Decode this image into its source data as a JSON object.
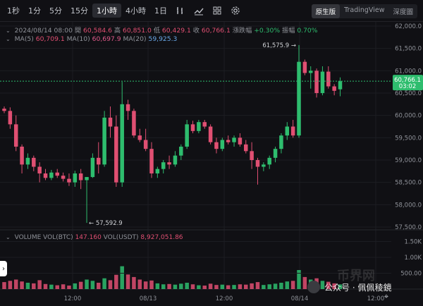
{
  "toolbar": {
    "timeframes": [
      "1秒",
      "1分",
      "5分",
      "15分",
      "1小時",
      "4小時",
      "1日"
    ],
    "active_timeframe": "1小時",
    "views": [
      "原生版",
      "TradingView",
      "深度圖"
    ],
    "active_view": "原生版"
  },
  "ohlc": {
    "date": "2024/08/14 08:00",
    "open_label": "開",
    "open": "60,584.6",
    "high_label": "高",
    "high": "60,851.0",
    "low_label": "低",
    "low": "60,429.1",
    "close_label": "收",
    "close": "60,766.1",
    "change_label": "漲跌幅",
    "change": "+0.30%",
    "amp_label": "振幅",
    "amp": "0.70%"
  },
  "ma": {
    "ma5_label": "MA(5)",
    "ma5": "60,709.1",
    "ma10_label": "MA(10)",
    "ma10": "60,697.9",
    "ma20_label": "MA(20)",
    "ma20": "59,925.3"
  },
  "volume": {
    "label": "VOLUME",
    "btc_label": "VOL(BTC)",
    "btc": "147.160",
    "usdt_label": "VOL(USDT)",
    "usdt": "8,927,051.86"
  },
  "price_axis": [
    "62,000.0",
    "61,500.0",
    "61,000.0",
    "60,500.0",
    "60,000.0",
    "59,500.0",
    "59,000.0",
    "58,500.0",
    "58,000.0",
    "57,500.0"
  ],
  "current_price": "60,766.1",
  "countdown": "03:02",
  "volume_axis": [
    "1.50K",
    "1.00K",
    "500.00"
  ],
  "time_axis": [
    "12:00",
    "08/13",
    "12:00",
    "08/14",
    "12:00"
  ],
  "annotations": {
    "high": "61,575.9",
    "low": "57,592.9"
  },
  "watermark": {
    "text": "公众号 · 佩佩稜鏡",
    "brand": "币界网"
  },
  "colors": {
    "up": "#2ebd6e",
    "down": "#e04f72",
    "background": "#101014"
  },
  "chart_data": {
    "type": "candlestick",
    "ylim": [
      57500,
      62000
    ],
    "candles": [
      [
        60150,
        60200,
        60050,
        60100,
        220
      ],
      [
        60100,
        60180,
        59700,
        59800,
        260
      ],
      [
        59800,
        60000,
        59200,
        59300,
        300
      ],
      [
        59300,
        59350,
        58700,
        58900,
        240
      ],
      [
        58900,
        59150,
        58800,
        59050,
        200
      ],
      [
        59050,
        59100,
        58750,
        58850,
        180
      ],
      [
        58850,
        58950,
        58500,
        58700,
        280
      ],
      [
        58700,
        58800,
        58550,
        58600,
        160
      ],
      [
        58600,
        58780,
        58550,
        58720,
        140
      ],
      [
        58720,
        58800,
        58600,
        58650,
        120
      ],
      [
        58650,
        58720,
        58520,
        58580,
        150
      ],
      [
        58580,
        58700,
        58420,
        58500,
        110
      ],
      [
        58500,
        58760,
        58400,
        58700,
        180
      ],
      [
        58700,
        58800,
        58350,
        58550,
        230
      ],
      [
        58550,
        58600,
        57592.9,
        58620,
        300
      ],
      [
        58620,
        59150,
        58600,
        59050,
        260
      ],
      [
        59050,
        59400,
        58700,
        58900,
        200
      ],
      [
        58900,
        60100,
        58850,
        59950,
        340
      ],
      [
        59950,
        60200,
        59500,
        59750,
        280
      ],
      [
        59750,
        60000,
        58400,
        58500,
        450
      ],
      [
        58500,
        60750,
        58400,
        60250,
        720
      ],
      [
        60250,
        60350,
        59900,
        60100,
        460
      ],
      [
        60100,
        60150,
        59500,
        59550,
        380
      ],
      [
        59550,
        59700,
        59400,
        59450,
        300
      ],
      [
        59450,
        59700,
        59200,
        59250,
        240
      ],
      [
        59250,
        59400,
        58600,
        58700,
        270
      ],
      [
        58700,
        58850,
        58600,
        58800,
        180
      ],
      [
        58800,
        59000,
        58700,
        58950,
        150
      ],
      [
        58950,
        59100,
        58800,
        58900,
        160
      ],
      [
        58900,
        59200,
        58850,
        59100,
        140
      ],
      [
        59100,
        59350,
        59000,
        59300,
        170
      ],
      [
        59300,
        59900,
        59250,
        59800,
        200
      ],
      [
        59800,
        59880,
        59600,
        59650,
        150
      ],
      [
        59650,
        59900,
        59600,
        59850,
        120
      ],
      [
        59850,
        59900,
        59700,
        59750,
        110
      ],
      [
        59750,
        59800,
        59350,
        59400,
        170
      ],
      [
        59400,
        59500,
        59150,
        59250,
        130
      ],
      [
        59250,
        59500,
        59200,
        59450,
        140
      ],
      [
        59450,
        59550,
        59350,
        59400,
        120
      ],
      [
        59400,
        59550,
        59300,
        59500,
        130
      ],
      [
        59500,
        59600,
        59300,
        59350,
        150
      ],
      [
        59350,
        59450,
        59150,
        59200,
        140
      ],
      [
        59200,
        59400,
        58800,
        59000,
        180
      ],
      [
        59000,
        59050,
        58450,
        58850,
        220
      ],
      [
        58850,
        58950,
        58750,
        58900,
        130
      ],
      [
        58900,
        59100,
        58800,
        59050,
        150
      ],
      [
        59050,
        59300,
        58950,
        59250,
        170
      ],
      [
        59250,
        59600,
        59150,
        59550,
        200
      ],
      [
        59550,
        59850,
        59450,
        59750,
        240
      ],
      [
        59750,
        59900,
        59500,
        59550,
        260
      ],
      [
        59550,
        61575.9,
        59500,
        61200,
        600
      ],
      [
        61200,
        61250,
        60900,
        60950,
        380
      ],
      [
        60950,
        61100,
        60600,
        61000,
        300
      ],
      [
        61000,
        61050,
        60400,
        60500,
        340
      ],
      [
        60500,
        61100,
        60450,
        60980,
        260
      ],
      [
        60980,
        61100,
        60600,
        60650,
        230
      ],
      [
        60650,
        60700,
        60450,
        60550,
        180
      ],
      [
        60584.6,
        60851.0,
        60429.1,
        60766.1,
        147
      ]
    ]
  }
}
